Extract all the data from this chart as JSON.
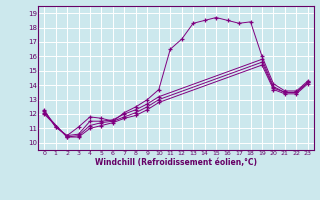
{
  "xlabel": "Windchill (Refroidissement éolien,°C)",
  "background_color": "#cce8ed",
  "line_color": "#800080",
  "xlim": [
    -0.5,
    23.5
  ],
  "ylim": [
    9.5,
    19.5
  ],
  "xticks": [
    0,
    1,
    2,
    3,
    4,
    5,
    6,
    7,
    8,
    9,
    10,
    11,
    12,
    13,
    14,
    15,
    16,
    17,
    18,
    19,
    20,
    21,
    22,
    23
  ],
  "yticks": [
    10,
    11,
    12,
    13,
    14,
    15,
    16,
    17,
    18,
    19
  ],
  "series1": [
    [
      0,
      12.3
    ],
    [
      1,
      11.1
    ],
    [
      2,
      10.5
    ],
    [
      3,
      11.1
    ],
    [
      4,
      11.8
    ],
    [
      5,
      11.7
    ],
    [
      6,
      11.5
    ],
    [
      7,
      12.1
    ],
    [
      8,
      12.5
    ],
    [
      9,
      13.0
    ],
    [
      10,
      13.7
    ],
    [
      11,
      16.5
    ],
    [
      12,
      17.2
    ],
    [
      13,
      18.3
    ],
    [
      14,
      18.5
    ],
    [
      15,
      18.7
    ],
    [
      16,
      18.5
    ],
    [
      17,
      18.3
    ],
    [
      18,
      18.4
    ],
    [
      19,
      16.0
    ],
    [
      20,
      14.1
    ],
    [
      21,
      13.6
    ],
    [
      22,
      13.6
    ],
    [
      23,
      14.3
    ]
  ],
  "series2": [
    [
      0,
      12.2
    ],
    [
      1,
      11.1
    ],
    [
      2,
      10.5
    ],
    [
      3,
      10.6
    ],
    [
      4,
      11.5
    ],
    [
      5,
      11.5
    ],
    [
      6,
      11.6
    ],
    [
      7,
      12.0
    ],
    [
      8,
      12.3
    ],
    [
      9,
      12.7
    ],
    [
      10,
      13.2
    ],
    [
      19,
      15.8
    ],
    [
      20,
      13.9
    ],
    [
      21,
      13.5
    ],
    [
      22,
      13.5
    ],
    [
      23,
      14.2
    ]
  ],
  "series3": [
    [
      0,
      12.1
    ],
    [
      2,
      10.4
    ],
    [
      3,
      10.5
    ],
    [
      4,
      11.2
    ],
    [
      5,
      11.4
    ],
    [
      6,
      11.5
    ],
    [
      7,
      11.8
    ],
    [
      8,
      12.1
    ],
    [
      9,
      12.5
    ],
    [
      10,
      13.0
    ],
    [
      19,
      15.6
    ],
    [
      20,
      13.8
    ],
    [
      21,
      13.5
    ],
    [
      22,
      13.5
    ],
    [
      23,
      14.2
    ]
  ],
  "series4": [
    [
      0,
      12.0
    ],
    [
      2,
      10.4
    ],
    [
      3,
      10.4
    ],
    [
      4,
      11.0
    ],
    [
      5,
      11.2
    ],
    [
      6,
      11.4
    ],
    [
      7,
      11.7
    ],
    [
      8,
      11.9
    ],
    [
      9,
      12.3
    ],
    [
      10,
      12.8
    ],
    [
      19,
      15.4
    ],
    [
      20,
      13.7
    ],
    [
      21,
      13.4
    ],
    [
      22,
      13.4
    ],
    [
      23,
      14.1
    ]
  ]
}
